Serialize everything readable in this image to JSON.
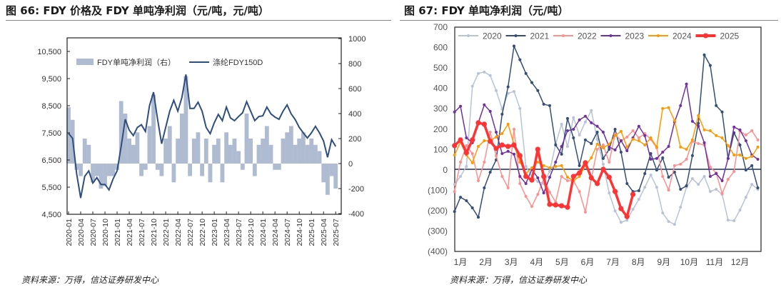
{
  "left": {
    "title": "图 66:  FDY 价格及 FDY 单吨净利润（元/吨，元/吨）",
    "source": "资料来源：万得，信达证券研发中心"
  },
  "right": {
    "title": "图 67:  FDY 单吨净利润（元/吨）",
    "source": "资料来源：万得，信达证券研发中心"
  },
  "chart_data": [
    {
      "type": "line+area",
      "title": "图 66:  FDY 价格及 FDY 单吨净利润（元/吨，元/吨）",
      "legend": [
        "FDY单吨净利润（右）",
        "涤纶FDY150D"
      ],
      "legend_placement": "top-left",
      "x_tick_labels": [
        "2020-01",
        "2020-04",
        "2020-07",
        "2020-10",
        "2021-01",
        "2021-04",
        "2021-07",
        "2021-10",
        "2022-01",
        "2022-04",
        "2022-07",
        "2022-10",
        "2023-01",
        "2023-04",
        "2023-07",
        "2023-10",
        "2024-01",
        "2024-04",
        "2024-07",
        "2024-10",
        "2025-01",
        "2025-04",
        "2025-07"
      ],
      "left_axis": {
        "ticks": [
          "10,500",
          "9,500",
          "8,500",
          "7,500",
          "6,500",
          "5,500",
          "4,500"
        ],
        "range": [
          4500,
          10500
        ]
      },
      "right_axis": {
        "ticks": [
          "1000",
          "800",
          "600",
          "400",
          "200",
          "0",
          "-200",
          "-400"
        ],
        "range": [
          -400,
          1000
        ]
      },
      "colors": {
        "price": "#2f4d7e",
        "profit": "#aebbd0"
      },
      "x_start": "2020-01",
      "x_step": "month",
      "series": [
        {
          "name": "涤纶FDY150D",
          "axis": "left",
          "values": [
            7480,
            7300,
            6000,
            5100,
            5900,
            6100,
            5650,
            5850,
            5600,
            5600,
            5400,
            5800,
            6100,
            7000,
            8000,
            7600,
            7400,
            7700,
            7800,
            7550,
            8500,
            9000,
            8000,
            7100,
            7700,
            8300,
            8700,
            8300,
            8800,
            9650,
            8400,
            8400,
            8630,
            8300,
            7700,
            7470,
            7870,
            8180,
            7950,
            8450,
            8050,
            7950,
            8100,
            8240,
            8650,
            8300,
            7950,
            8100,
            8130,
            8450,
            8200,
            8080,
            8000,
            8300,
            8530,
            8200,
            7990,
            7700,
            7500,
            7310,
            7500,
            7740,
            7500,
            7200,
            6600,
            7250,
            7000
          ]
        },
        {
          "name": "FDY单吨净利润（右）",
          "axis": "right",
          "values": [
            450,
            350,
            -50,
            -100,
            200,
            150,
            -150,
            -100,
            -200,
            -180,
            -100,
            -100,
            -50,
            500,
            400,
            200,
            150,
            250,
            -100,
            -50,
            300,
            550,
            -50,
            -100,
            200,
            300,
            -150,
            200,
            400,
            700,
            -100,
            200,
            250,
            -100,
            200,
            -150,
            150,
            200,
            -150,
            250,
            150,
            200,
            100,
            -50,
            400,
            200,
            -100,
            150,
            200,
            300,
            150,
            -50,
            -50,
            200,
            250,
            300,
            150,
            200,
            250,
            150,
            200,
            150,
            100,
            -150,
            -250,
            -100,
            -200
          ]
        }
      ]
    },
    {
      "type": "line",
      "title": "图 67:  FDY 单吨净利润（元/吨）",
      "y_ticks": [
        "700",
        "600",
        "500",
        "400",
        "300",
        "200",
        "100",
        "0",
        "(100)",
        "(200)",
        "(300)",
        "(400)"
      ],
      "ylim": [
        -400,
        700
      ],
      "x_tick_labels": [
        "1月",
        "2月",
        "3月",
        "4月",
        "5月",
        "6月",
        "7月",
        "8月",
        "9月",
        "10月",
        "11月",
        "12月"
      ],
      "legend_placement": "top",
      "x_unit": "week",
      "series": [
        {
          "name": "2020",
          "color": "#b8c3d6",
          "values": [
            -74,
            -35,
            14,
            407,
            470,
            477,
            460,
            386,
            295,
            372,
            382,
            298,
            14,
            -35,
            -60,
            -70,
            -10,
            123,
            221,
            112,
            253,
            168,
            232,
            288,
            147,
            25,
            -116,
            -204,
            -260,
            -250,
            -196,
            -147,
            -88,
            -28,
            -88,
            -214,
            -256,
            -270,
            -186,
            -88,
            -46,
            -74,
            -35,
            -109,
            -98,
            -123,
            -249,
            -252,
            -200,
            -137,
            -74,
            -98
          ]
        },
        {
          "name": "2021",
          "color": "#344e78",
          "values": [
            -207,
            -137,
            -154,
            -189,
            -235,
            -91,
            -14,
            46,
            270,
            404,
            604,
            537,
            470,
            425,
            386,
            319,
            312,
            119,
            74,
            249,
            154,
            18,
            144,
            126,
            182,
            53,
            98,
            196,
            84,
            -70,
            -109,
            -105,
            -21,
            77,
            -4,
            56,
            -39,
            -14,
            -98,
            -81,
            67,
            225,
            561,
            509,
            312,
            281,
            53,
            179,
            119,
            -4,
            18,
            -91
          ]
        },
        {
          "name": "2022",
          "color": "#ff8f8f",
          "values": [
            -109,
            35,
            116,
            77,
            -56,
            35,
            182,
            67,
            -35,
            -91,
            196,
            -70,
            -133,
            -182,
            -123,
            -46,
            -112,
            -161,
            -35,
            -56,
            -56,
            -109,
            -210,
            -46,
            98,
            119,
            35,
            172,
            140,
            158,
            189,
            154,
            175,
            147,
            105,
            -35,
            -102,
            18,
            25,
            49,
            137,
            126,
            119,
            11,
            -18,
            -119,
            -49,
            -11,
            186,
            168,
            189,
            144
          ]
        },
        {
          "name": "2023",
          "color": "#7030a0",
          "values": [
            281,
            309,
            154,
            130,
            228,
            316,
            284,
            182,
            77,
            88,
            74,
            -35,
            -70,
            0,
            -42,
            -116,
            -39,
            35,
            112,
            189,
            196,
            242,
            260,
            228,
            211,
            182,
            109,
            95,
            140,
            91,
            154,
            211,
            165,
            49,
            53,
            84,
            112,
            232,
            312,
            418,
            235,
            211,
            130,
            -35,
            -21,
            -56,
            53,
            207,
            193,
            140,
            70,
            49
          ]
        },
        {
          "name": "2024",
          "color": "#ff9900",
          "values": [
            70,
            133,
            70,
            32,
            112,
            140,
            140,
            158,
            175,
            221,
            123,
            35,
            -21,
            7,
            35,
            18,
            7,
            14,
            18,
            -39,
            -56,
            -35,
            18,
            56,
            123,
            105,
            123,
            165,
            186,
            109,
            147,
            140,
            119,
            154,
            109,
            298,
            302,
            239,
            109,
            98,
            144,
            263,
            193,
            189,
            165,
            154,
            116,
            70,
            70,
            53,
            63,
            109
          ]
        },
        {
          "name": "2025",
          "color": "#ff3333",
          "values": [
            116,
            144,
            81,
            144,
            228,
            221,
            137,
            102,
            119,
            112,
            119,
            67,
            -35,
            -53,
            98,
            -35,
            -172,
            -175,
            -179,
            -186,
            -35,
            -18,
            32,
            -42,
            -70,
            0,
            -39,
            -109,
            -193,
            -232,
            -123
          ]
        }
      ]
    }
  ]
}
